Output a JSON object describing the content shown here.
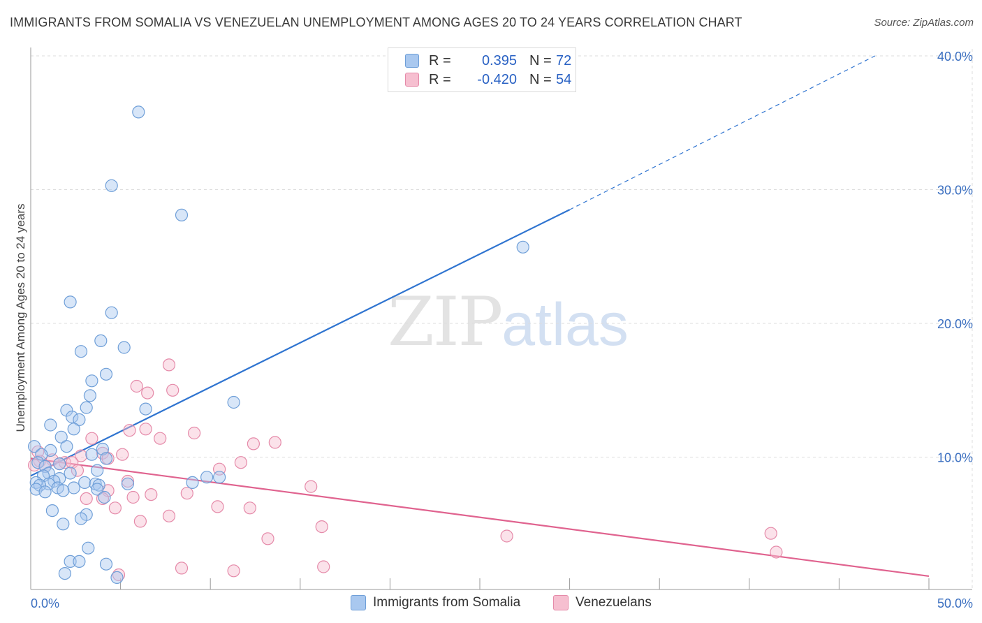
{
  "title": "IMMIGRANTS FROM SOMALIA VS VENEZUELAN UNEMPLOYMENT AMONG AGES 20 TO 24 YEARS CORRELATION CHART",
  "source": "Source: ZipAtlas.com",
  "watermark": {
    "zip": "ZIP",
    "atlas": "atlas"
  },
  "legend": {
    "rows": [
      {
        "r_label": "R =",
        "r_value": "0.395",
        "n_label": "N =",
        "n_value": "72"
      },
      {
        "r_label": "R =",
        "r_value": "-0.420",
        "n_label": "N =",
        "n_value": "54"
      }
    ]
  },
  "colors": {
    "somalia_fill": "#a9c8ef",
    "somalia_stroke": "#6f9fd8",
    "somalia_line": "#2f74d0",
    "venezuela_fill": "#f6bfd0",
    "venezuela_stroke": "#e58aa9",
    "venezuela_line": "#e0638f",
    "grid": "#dddddd",
    "axis_text": "#3b6fc0"
  },
  "chart_data": {
    "type": "scatter",
    "title": "IMMIGRANTS FROM SOMALIA VS VENEZUELAN UNEMPLOYMENT AMONG AGES 20 TO 24 YEARS CORRELATION CHART",
    "xlabel": "",
    "ylabel": "Unemployment Among Ages 20 to 24 years",
    "xlim": [
      0,
      50
    ],
    "ylim": [
      0,
      40
    ],
    "x_tick_labels": [
      "0.0%",
      "50.0%"
    ],
    "y_ticks": [
      10,
      20,
      30,
      40
    ],
    "y_tick_labels": [
      "10.0%",
      "20.0%",
      "30.0%",
      "40.0%"
    ],
    "grid": true,
    "series": [
      {
        "name": "Immigrants from Somalia",
        "r": 0.395,
        "n": 72,
        "trend": {
          "x0": 0,
          "y0": 8.6,
          "x1": 30,
          "y1": 28.5,
          "dashed_to_x": 47,
          "dashed_to_y": 40
        },
        "points": [
          [
            6.0,
            35.8
          ],
          [
            4.5,
            30.3
          ],
          [
            8.4,
            28.1
          ],
          [
            27.4,
            25.7
          ],
          [
            2.2,
            21.6
          ],
          [
            4.5,
            20.8
          ],
          [
            3.9,
            18.7
          ],
          [
            5.2,
            18.2
          ],
          [
            2.8,
            17.9
          ],
          [
            4.2,
            16.2
          ],
          [
            3.4,
            15.7
          ],
          [
            3.3,
            14.6
          ],
          [
            11.3,
            14.1
          ],
          [
            2.0,
            13.5
          ],
          [
            3.1,
            13.7
          ],
          [
            6.4,
            13.6
          ],
          [
            2.3,
            13.0
          ],
          [
            2.7,
            12.8
          ],
          [
            1.1,
            12.4
          ],
          [
            2.4,
            12.1
          ],
          [
            1.7,
            11.5
          ],
          [
            2.0,
            10.8
          ],
          [
            4.0,
            10.6
          ],
          [
            0.2,
            10.8
          ],
          [
            3.4,
            10.2
          ],
          [
            1.1,
            10.5
          ],
          [
            0.6,
            10.2
          ],
          [
            4.2,
            9.9
          ],
          [
            0.4,
            9.6
          ],
          [
            1.6,
            9.5
          ],
          [
            0.8,
            9.3
          ],
          [
            3.7,
            9.0
          ],
          [
            1.0,
            8.8
          ],
          [
            2.2,
            8.8
          ],
          [
            0.7,
            8.6
          ],
          [
            9.8,
            8.5
          ],
          [
            10.5,
            8.5
          ],
          [
            1.6,
            8.4
          ],
          [
            1.3,
            8.2
          ],
          [
            0.3,
            8.1
          ],
          [
            3.0,
            8.1
          ],
          [
            1.0,
            8.0
          ],
          [
            3.6,
            8.0
          ],
          [
            5.4,
            8.0
          ],
          [
            9.0,
            8.1
          ],
          [
            3.8,
            7.9
          ],
          [
            0.5,
            7.9
          ],
          [
            1.5,
            7.7
          ],
          [
            3.7,
            7.6
          ],
          [
            0.3,
            7.6
          ],
          [
            2.4,
            7.7
          ],
          [
            1.8,
            7.5
          ],
          [
            0.8,
            7.4
          ],
          [
            4.1,
            7.0
          ],
          [
            1.2,
            6.0
          ],
          [
            3.1,
            5.7
          ],
          [
            2.8,
            5.4
          ],
          [
            1.8,
            5.0
          ],
          [
            3.2,
            3.2
          ],
          [
            2.2,
            2.2
          ],
          [
            2.7,
            2.2
          ],
          [
            4.2,
            2.0
          ],
          [
            1.9,
            1.3
          ],
          [
            4.8,
            1.0
          ]
        ]
      },
      {
        "name": "Venezuelans",
        "r": -0.42,
        "n": 54,
        "trend": {
          "x0": 0,
          "y0": 9.9,
          "x1": 50,
          "y1": 1.1
        },
        "points": [
          [
            7.7,
            16.9
          ],
          [
            5.9,
            15.3
          ],
          [
            7.9,
            15.0
          ],
          [
            6.5,
            14.8
          ],
          [
            6.4,
            12.1
          ],
          [
            5.5,
            12.0
          ],
          [
            9.1,
            11.8
          ],
          [
            7.2,
            11.4
          ],
          [
            3.4,
            11.4
          ],
          [
            12.4,
            11.0
          ],
          [
            13.6,
            11.1
          ],
          [
            4.0,
            10.3
          ],
          [
            5.1,
            10.2
          ],
          [
            0.4,
            10.4
          ],
          [
            2.8,
            10.1
          ],
          [
            4.3,
            9.9
          ],
          [
            1.2,
            9.8
          ],
          [
            0.5,
            9.7
          ],
          [
            1.9,
            9.6
          ],
          [
            2.3,
            9.6
          ],
          [
            1.6,
            9.5
          ],
          [
            11.7,
            9.6
          ],
          [
            0.2,
            9.4
          ],
          [
            0.8,
            9.3
          ],
          [
            10.5,
            9.1
          ],
          [
            2.6,
            9.0
          ],
          [
            5.4,
            8.2
          ],
          [
            15.6,
            7.8
          ],
          [
            4.3,
            7.5
          ],
          [
            8.7,
            7.3
          ],
          [
            6.7,
            7.2
          ],
          [
            5.7,
            7.0
          ],
          [
            3.1,
            6.9
          ],
          [
            4.0,
            6.9
          ],
          [
            4.7,
            6.2
          ],
          [
            10.4,
            6.3
          ],
          [
            12.2,
            6.2
          ],
          [
            7.7,
            5.6
          ],
          [
            6.1,
            5.2
          ],
          [
            16.2,
            4.8
          ],
          [
            26.5,
            4.1
          ],
          [
            13.2,
            3.9
          ],
          [
            41.2,
            4.3
          ],
          [
            41.5,
            2.9
          ],
          [
            8.4,
            1.7
          ],
          [
            11.3,
            1.5
          ],
          [
            16.3,
            1.8
          ],
          [
            4.9,
            1.2
          ]
        ]
      }
    ]
  },
  "bottom_legend": [
    {
      "label": "Immigrants from Somalia"
    },
    {
      "label": "Venezuelans"
    }
  ]
}
